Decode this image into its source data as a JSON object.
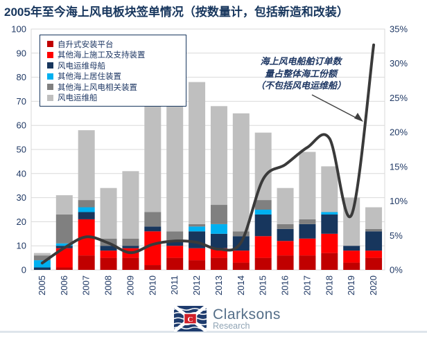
{
  "title": "2005年至今海上风电板块签单情况（按数量计，包括新造和改装）",
  "annotation": {
    "lines": [
      "海上风电船舶订单数",
      "量占整体海工份额",
      "（不包括风电运维船）"
    ]
  },
  "logo": {
    "brand": "Clarksons",
    "sub": "Research",
    "flag_letter": "C"
  },
  "colors": {
    "title_text": "#17365D",
    "axis_text": "#1F3864",
    "gridline": "#D9D9D9",
    "plot_border": "#D9D9D9",
    "trend_line": "#3A3A3A",
    "legend_border": "#17365D",
    "background": "#FFFFFF"
  },
  "chart_data": {
    "type": "bar",
    "stacked": true,
    "grid": true,
    "legend_position": "top-left-inside",
    "categories": [
      "2005",
      "2006",
      "2007",
      "2008",
      "2009",
      "2010",
      "2011",
      "2012",
      "2013",
      "2014",
      "2015",
      "2016",
      "2017",
      "2018",
      "2019",
      "2020"
    ],
    "series": [
      {
        "name": "自升式安装平台",
        "color": "#C00000",
        "values": [
          0,
          1,
          6,
          5,
          5,
          2,
          5,
          4,
          5,
          3,
          5,
          6,
          6,
          7,
          3,
          5
        ]
      },
      {
        "name": "其他海上施工及支持装置",
        "color": "#FF0000",
        "values": [
          0,
          8,
          15,
          3,
          4,
          14,
          5,
          5,
          4,
          5,
          9,
          6,
          7,
          8,
          5,
          3
        ]
      },
      {
        "name": "风电运维母船",
        "color": "#17365D",
        "values": [
          1,
          1,
          3,
          2,
          1,
          2,
          2,
          7,
          6,
          6,
          9,
          5,
          6,
          8,
          2,
          8
        ]
      },
      {
        "name": "其他海上居住装置",
        "color": "#00B0F0",
        "values": [
          3,
          1,
          2,
          0,
          0,
          0,
          0,
          2,
          4,
          0,
          2,
          0,
          0,
          1,
          0,
          0
        ]
      },
      {
        "name": "其他海上风电相关装置",
        "color": "#808080",
        "values": [
          2,
          12,
          3,
          3,
          3,
          6,
          4,
          1,
          8,
          2,
          4,
          2,
          2,
          0,
          0,
          1
        ]
      },
      {
        "name": "风电运维船",
        "color": "#BFBFBF",
        "values": [
          1,
          8,
          29,
          21,
          28,
          47,
          75,
          59,
          41,
          49,
          28,
          15,
          28,
          19,
          20,
          9
        ]
      }
    ],
    "totals": [
      7,
      31,
      58,
      34,
      41,
      71,
      91,
      78,
      68,
      65,
      57,
      34,
      49,
      43,
      30,
      26
    ],
    "line_series": {
      "name": "海上风电船舶订单数量占整体海工份额（不包括风电运维船）",
      "axis": "right",
      "unit": "%",
      "values": [
        1.0,
        3.2,
        4.8,
        3.9,
        2.5,
        3.7,
        4.2,
        4.0,
        3.0,
        4.0,
        13.2,
        15.3,
        17.8,
        19.1,
        8.0,
        32.7
      ]
    },
    "left_axis": {
      "min": 0,
      "max": 100,
      "step": 10,
      "suffix": ""
    },
    "right_axis": {
      "min": 0,
      "max": 35,
      "step": 5,
      "suffix": "%"
    }
  }
}
